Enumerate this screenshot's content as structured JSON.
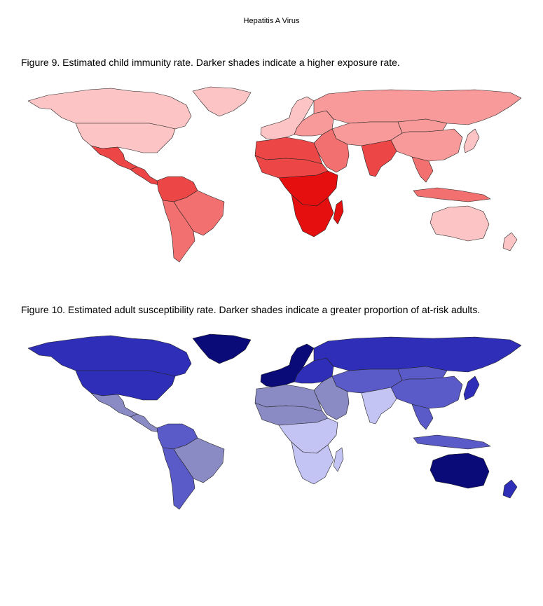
{
  "header": {
    "title": "Hepatitis A Virus"
  },
  "figures": [
    {
      "caption": "Figure 9.  Estimated child immunity rate.  Darker shades indicate a higher exposure rate.",
      "palette": {
        "very_low": "#fcc4c4",
        "low": "#f89a9a",
        "medium": "#f27070",
        "high": "#ec4646",
        "very_high": "#e50f0f"
      },
      "regions": {
        "canada": "very_low",
        "greenland": "very_low",
        "usa": "very_low",
        "mexico": "high",
        "central_america": "high",
        "south_america_north": "high",
        "brazil": "medium",
        "southern_cone": "medium",
        "western_europe": "very_low",
        "eastern_europe": "low",
        "russia": "low",
        "north_africa": "high",
        "sahel": "high",
        "subsaharan_africa": "very_high",
        "southern_africa": "very_high",
        "madagascar": "very_high",
        "middle_east": "medium",
        "central_asia": "low",
        "south_asia": "high",
        "china": "low",
        "mongolia": "low",
        "southeast_asia": "medium",
        "indonesia": "medium",
        "japan": "very_low",
        "australia": "very_low",
        "new_zealand": "very_low"
      }
    },
    {
      "caption": "Figure 10.  Estimated adult susceptibility rate.  Darker shades indicate a greater proportion of at-risk adults.",
      "palette": {
        "very_low": "#c4c4f4",
        "low": "#8a8ac4",
        "medium": "#5a5ac8",
        "high": "#2e2eb8",
        "very_high": "#0a0a78"
      },
      "regions": {
        "canada": "high",
        "greenland": "very_high",
        "usa": "high",
        "mexico": "low",
        "central_america": "low",
        "south_america_north": "medium",
        "brazil": "low",
        "southern_cone": "medium",
        "western_europe": "very_high",
        "eastern_europe": "high",
        "russia": "high",
        "north_africa": "low",
        "sahel": "low",
        "subsaharan_africa": "very_low",
        "southern_africa": "very_low",
        "madagascar": "very_low",
        "middle_east": "low",
        "central_asia": "medium",
        "south_asia": "very_low",
        "china": "medium",
        "mongolia": "medium",
        "southeast_asia": "medium",
        "indonesia": "medium",
        "japan": "high",
        "australia": "very_high",
        "new_zealand": "high"
      }
    }
  ]
}
